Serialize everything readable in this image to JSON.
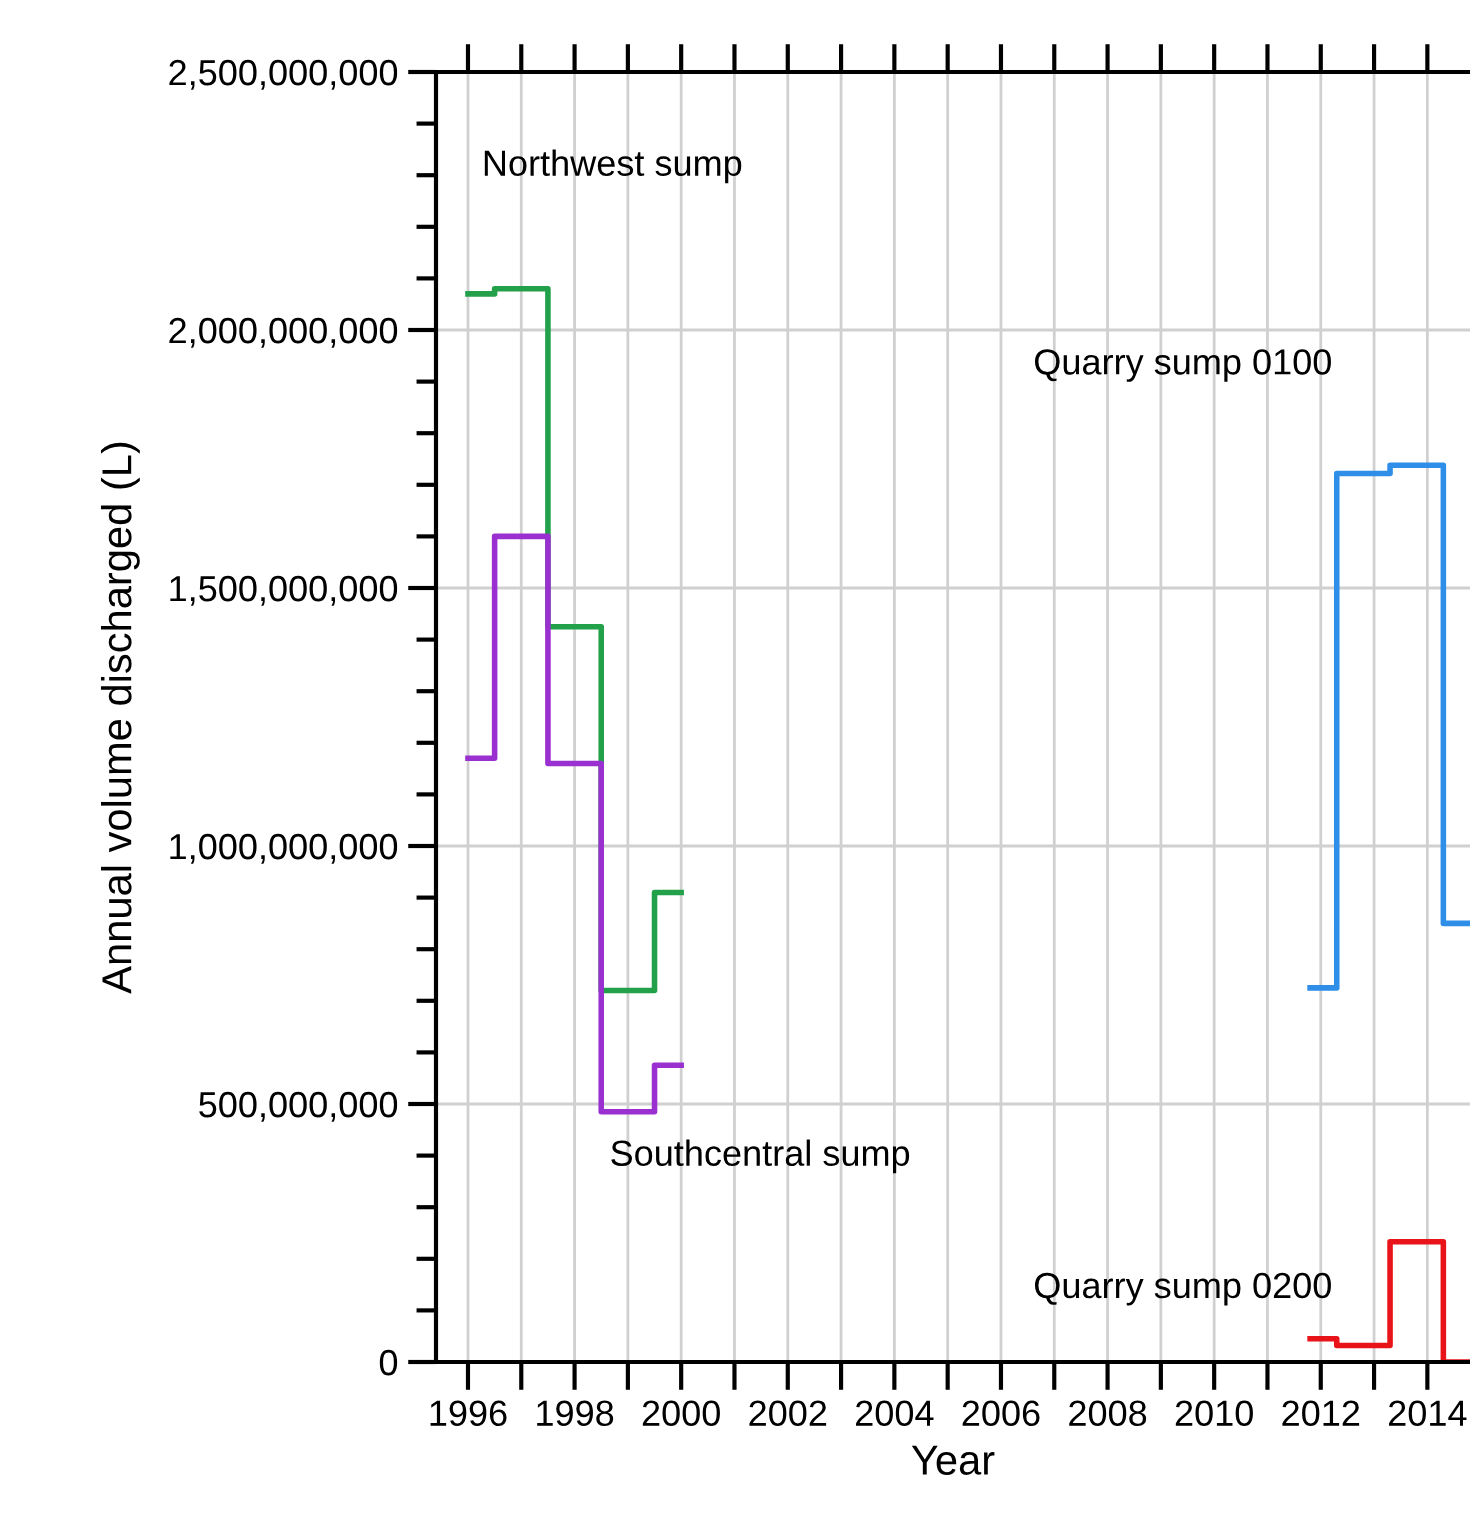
{
  "chart_data": {
    "type": "step",
    "xlabel": "Year",
    "ylabel": "Annual volume discharged (L)",
    "xlim": [
      1995.4,
      2014.8
    ],
    "ylim": [
      0,
      2500000000
    ],
    "xticks": [
      1996,
      {
        "value": 1997,
        "label": null
      },
      1998,
      {
        "value": 1999,
        "label": null
      },
      2000,
      {
        "value": 2001,
        "label": null
      },
      2002,
      {
        "value": 2003,
        "label": null
      },
      2004,
      {
        "value": 2005,
        "label": null
      },
      2006,
      {
        "value": 2007,
        "label": null
      },
      2008,
      {
        "value": 2009,
        "label": null
      },
      2010,
      {
        "value": 2011,
        "label": null
      },
      2012,
      {
        "value": 2013,
        "label": null
      },
      2014
    ],
    "yticks": [
      {
        "value": 0,
        "label": "0"
      },
      {
        "value": 100000000,
        "label": null
      },
      {
        "value": 200000000,
        "label": null
      },
      {
        "value": 300000000,
        "label": null
      },
      {
        "value": 400000000,
        "label": null
      },
      {
        "value": 500000000,
        "label": "500,000,000"
      },
      {
        "value": 600000000,
        "label": null
      },
      {
        "value": 700000000,
        "label": null
      },
      {
        "value": 800000000,
        "label": null
      },
      {
        "value": 900000000,
        "label": null
      },
      {
        "value": 1000000000,
        "label": "1,000,000,000"
      },
      {
        "value": 1100000000,
        "label": null
      },
      {
        "value": 1200000000,
        "label": null
      },
      {
        "value": 1300000000,
        "label": null
      },
      {
        "value": 1400000000,
        "label": null
      },
      {
        "value": 1500000000,
        "label": "1,500,000,000"
      },
      {
        "value": 1600000000,
        "label": null
      },
      {
        "value": 1700000000,
        "label": null
      },
      {
        "value": 1800000000,
        "label": null
      },
      {
        "value": 1900000000,
        "label": null
      },
      {
        "value": 2000000000,
        "label": "2,000,000,000"
      },
      {
        "value": 2100000000,
        "label": null
      },
      {
        "value": 2200000000,
        "label": null
      },
      {
        "value": 2300000000,
        "label": null
      },
      {
        "value": 2400000000,
        "label": null
      },
      {
        "value": 2500000000,
        "label": "2,500,000,000"
      }
    ],
    "grid": true,
    "legend": false,
    "series": [
      {
        "name": "Northwest sump",
        "color": "#22a04a",
        "x": [
          1996,
          1997,
          1998,
          1999,
          2000
        ],
        "values": [
          2070000000,
          2080000000,
          1425000000,
          720000000,
          910000000
        ]
      },
      {
        "name": "Southcentral sump",
        "color": "#9b30d0",
        "x": [
          1996,
          1997,
          1998,
          1999,
          2000
        ],
        "values": [
          1170000000,
          1600000000,
          1160000000,
          485000000,
          575000000
        ]
      },
      {
        "name": "Quarry sump 0100",
        "color": "#2e8ee8",
        "x": [
          2011.8,
          2012.8,
          2013.8,
          2014.8
        ],
        "values": [
          725000000,
          1722000000,
          1738000000,
          850000000
        ]
      },
      {
        "name": "Quarry sump 0200",
        "color": "#e8141a",
        "x": [
          2011.8,
          2012.8,
          2013.8,
          2014.8
        ],
        "values": [
          45000000,
          32000000,
          233000000,
          0
        ]
      }
    ]
  }
}
